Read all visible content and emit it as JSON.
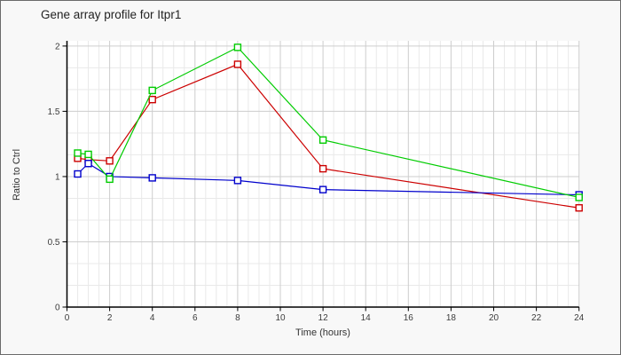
{
  "chart": {
    "title": "Gene array profile for Itpr1"
  },
  "chart_data": {
    "type": "line",
    "title": "Gene array profile for Itpr1",
    "xlabel": "Time (hours)",
    "ylabel": "Ratio to Ctrl",
    "xlim": [
      0,
      24
    ],
    "ylim": [
      0,
      2.04
    ],
    "x_ticks": [
      0,
      2,
      4,
      6,
      8,
      10,
      12,
      14,
      16,
      18,
      20,
      22,
      24
    ],
    "y_ticks": [
      0,
      0.5,
      1,
      1.5,
      2
    ],
    "x_minor_step": 0.5,
    "y_minor_step": 0.166667,
    "grid": true,
    "legend": "none",
    "marker": "open-square",
    "x": [
      0.5,
      1,
      2,
      4,
      8,
      12,
      24
    ],
    "series": [
      {
        "name": "red-series",
        "color": "#cc0000",
        "values": [
          1.14,
          1.13,
          1.12,
          1.59,
          1.86,
          1.06,
          0.76
        ]
      },
      {
        "name": "blue-series",
        "color": "#0000cc",
        "values": [
          1.02,
          1.1,
          1.0,
          0.99,
          0.97,
          0.9,
          0.86
        ]
      },
      {
        "name": "green-series",
        "color": "#00cc00",
        "values": [
          1.18,
          1.17,
          0.98,
          1.66,
          1.99,
          1.28,
          0.84
        ]
      }
    ],
    "colors": {
      "plot_background": "#ffffff",
      "page_background": "#f8f8f8",
      "grid_minor": "#e9e9e9",
      "grid_major": "#cdcdcd",
      "axis": "#000000",
      "tick_label": "#3c3c3c"
    }
  }
}
